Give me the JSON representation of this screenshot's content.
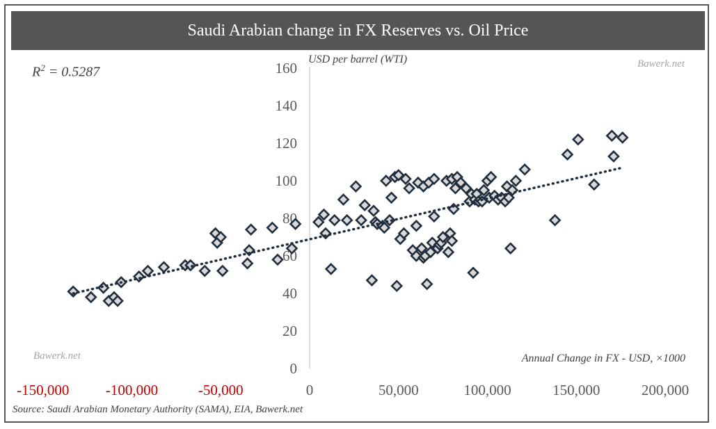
{
  "title": "Saudi Arabian change in FX Reserves vs. Oil Price",
  "r_squared_label": "0.5287",
  "watermark_top": "Bawerk.net",
  "watermark_bottom": "Bawerk.net",
  "source": "Source: Saudi Arabian Monetary Authority (SAMA), EIA, Bawerk.net",
  "colors": {
    "title_bg": "#555555",
    "marker_fill": "#d9d9d9",
    "marker_stroke": "#1f2d3d",
    "trendline": "#1f2d3d",
    "negative_tick": "#c00000",
    "tick": "#595959"
  },
  "chart_data": {
    "type": "scatter",
    "title": "Saudi Arabian change in FX Reserves vs. Oil Price",
    "xlabel": "Annual Change in FX - USD, ×1000",
    "ylabel": "USD per barrel (WTI)",
    "xlim": [
      -150000,
      200000
    ],
    "ylim": [
      0,
      160
    ],
    "x_ticks": [
      -150000,
      -100000,
      -50000,
      0,
      50000,
      100000,
      150000,
      200000
    ],
    "x_tick_labels": [
      "-150,000",
      "-100,000",
      "-50,000",
      "0",
      "50,000",
      "100,000",
      "150,000",
      "200,000"
    ],
    "y_ticks": [
      0,
      20,
      40,
      60,
      80,
      100,
      120,
      140,
      160
    ],
    "y_tick_labels": [
      "0",
      "20",
      "40",
      "60",
      "80",
      "100",
      "120",
      "140",
      "160"
    ],
    "grid": false,
    "trendline": {
      "type": "linear",
      "x": [
        -133000,
        176000
      ],
      "y": [
        40,
        107
      ],
      "r_squared": 0.5287
    },
    "points": [
      [
        -133000,
        41
      ],
      [
        -123000,
        38
      ],
      [
        -116000,
        43
      ],
      [
        -113000,
        36
      ],
      [
        -110000,
        38
      ],
      [
        -108000,
        36
      ],
      [
        -106000,
        46
      ],
      [
        -96000,
        49
      ],
      [
        -91000,
        52
      ],
      [
        -82000,
        54
      ],
      [
        -70000,
        55
      ],
      [
        -67000,
        55
      ],
      [
        -59000,
        52
      ],
      [
        -53000,
        72
      ],
      [
        -52000,
        67
      ],
      [
        -50000,
        70
      ],
      [
        -49000,
        52
      ],
      [
        -33000,
        74
      ],
      [
        -34000,
        63
      ],
      [
        -35000,
        56
      ],
      [
        -21000,
        75
      ],
      [
        -18000,
        58
      ],
      [
        -10000,
        64
      ],
      [
        -8000,
        77
      ],
      [
        5000,
        78
      ],
      [
        8000,
        82
      ],
      [
        9000,
        72
      ],
      [
        12000,
        53
      ],
      [
        14000,
        79
      ],
      [
        19000,
        90
      ],
      [
        21000,
        79
      ],
      [
        26000,
        97
      ],
      [
        29000,
        79
      ],
      [
        31000,
        87
      ],
      [
        35000,
        47
      ],
      [
        36000,
        84
      ],
      [
        37000,
        78
      ],
      [
        38000,
        77
      ],
      [
        41000,
        76
      ],
      [
        42000,
        75
      ],
      [
        43000,
        100
      ],
      [
        45000,
        79
      ],
      [
        46000,
        91
      ],
      [
        48000,
        102
      ],
      [
        49000,
        44
      ],
      [
        50000,
        103
      ],
      [
        51000,
        69
      ],
      [
        53000,
        72
      ],
      [
        54000,
        101
      ],
      [
        56000,
        96
      ],
      [
        58000,
        63
      ],
      [
        60000,
        60
      ],
      [
        60000,
        76
      ],
      [
        61000,
        99
      ],
      [
        63000,
        64
      ],
      [
        64000,
        59
      ],
      [
        64000,
        97
      ],
      [
        65000,
        60
      ],
      [
        66000,
        45
      ],
      [
        67000,
        99
      ],
      [
        68000,
        62
      ],
      [
        69000,
        67
      ],
      [
        70000,
        101
      ],
      [
        70000,
        81
      ],
      [
        72000,
        64
      ],
      [
        73000,
        66
      ],
      [
        74000,
        67
      ],
      [
        75000,
        70
      ],
      [
        77000,
        100
      ],
      [
        78000,
        62
      ],
      [
        79000,
        72
      ],
      [
        80000,
        101
      ],
      [
        80000,
        68
      ],
      [
        81000,
        85
      ],
      [
        82000,
        96
      ],
      [
        83000,
        102
      ],
      [
        85000,
        99
      ],
      [
        88000,
        96
      ],
      [
        90000,
        89
      ],
      [
        91000,
        93
      ],
      [
        92000,
        51
      ],
      [
        93000,
        90
      ],
      [
        94000,
        93
      ],
      [
        95000,
        89
      ],
      [
        97000,
        89
      ],
      [
        98000,
        95
      ],
      [
        100000,
        100
      ],
      [
        101000,
        91
      ],
      [
        102000,
        102
      ],
      [
        104000,
        92
      ],
      [
        106000,
        90
      ],
      [
        108000,
        91
      ],
      [
        110000,
        89
      ],
      [
        111000,
        97
      ],
      [
        112000,
        91
      ],
      [
        113000,
        64
      ],
      [
        114000,
        95
      ],
      [
        116000,
        100
      ],
      [
        121000,
        106
      ],
      [
        138000,
        79
      ],
      [
        145000,
        114
      ],
      [
        151000,
        122
      ],
      [
        160000,
        98
      ],
      [
        170000,
        124
      ],
      [
        171000,
        113
      ],
      [
        176000,
        123
      ]
    ]
  }
}
